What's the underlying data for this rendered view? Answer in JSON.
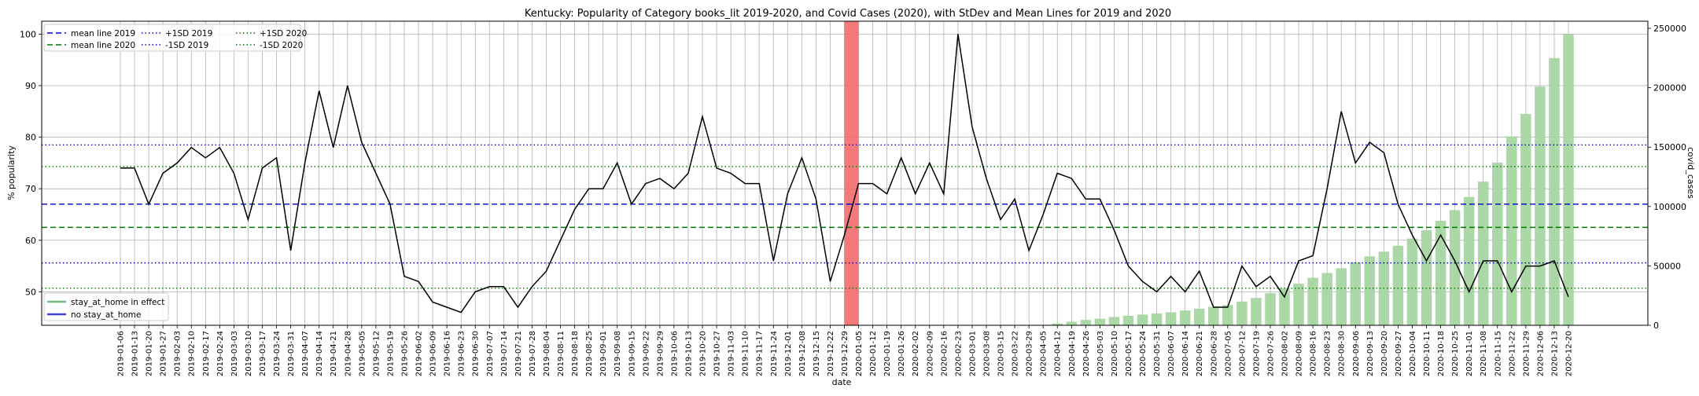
{
  "chart_data": {
    "type": "line",
    "title": "Kentucky: Popularity of Category books_lit 2019-2020, and Covid Cases (2020), with StDev and Mean Lines for 2019 and 2020",
    "xlabel": "date",
    "ylabel": "% popularity",
    "y2label": "covid_cases",
    "ylim": [
      43.5,
      102.5
    ],
    "y2lim": [
      0,
      256000
    ],
    "yticks": [
      50,
      60,
      70,
      80,
      90,
      100
    ],
    "y2ticks": [
      0,
      50000,
      100000,
      150000,
      200000,
      250000
    ],
    "grid": true,
    "categories": [
      "2019-01-06",
      "2019-01-13",
      "2019-01-20",
      "2019-01-27",
      "2019-02-03",
      "2019-02-10",
      "2019-02-17",
      "2019-02-24",
      "2019-03-03",
      "2019-03-10",
      "2019-03-17",
      "2019-03-24",
      "2019-03-31",
      "2019-04-07",
      "2019-04-14",
      "2019-04-21",
      "2019-04-28",
      "2019-05-05",
      "2019-05-12",
      "2019-05-19",
      "2019-05-26",
      "2019-06-02",
      "2019-06-09",
      "2019-06-16",
      "2019-06-23",
      "2019-06-30",
      "2019-07-07",
      "2019-07-14",
      "2019-07-21",
      "2019-07-28",
      "2019-08-04",
      "2019-08-11",
      "2019-08-18",
      "2019-08-25",
      "2019-09-01",
      "2019-09-08",
      "2019-09-15",
      "2019-09-22",
      "2019-09-29",
      "2019-10-06",
      "2019-10-13",
      "2019-10-20",
      "2019-10-27",
      "2019-11-03",
      "2019-11-10",
      "2019-11-17",
      "2019-11-24",
      "2019-12-01",
      "2019-12-08",
      "2019-12-15",
      "2019-12-22",
      "2019-12-29",
      "2020-01-05",
      "2020-01-12",
      "2020-01-19",
      "2020-01-26",
      "2020-02-02",
      "2020-02-09",
      "2020-02-16",
      "2020-02-23",
      "2020-03-01",
      "2020-03-08",
      "2020-03-15",
      "2020-03-22",
      "2020-03-29",
      "2020-04-05",
      "2020-04-12",
      "2020-04-19",
      "2020-04-26",
      "2020-05-03",
      "2020-05-10",
      "2020-05-17",
      "2020-05-24",
      "2020-05-31",
      "2020-06-07",
      "2020-06-14",
      "2020-06-21",
      "2020-06-28",
      "2020-07-05",
      "2020-07-12",
      "2020-07-19",
      "2020-07-26",
      "2020-08-02",
      "2020-08-09",
      "2020-08-16",
      "2020-08-23",
      "2020-08-30",
      "2020-09-06",
      "2020-09-13",
      "2020-09-20",
      "2020-09-27",
      "2020-10-04",
      "2020-10-11",
      "2020-10-18",
      "2020-10-25",
      "2020-11-01",
      "2020-11-08",
      "2020-11-15",
      "2020-11-22",
      "2020-11-29",
      "2020-12-06",
      "2020-12-13",
      "2020-12-20"
    ],
    "xtick_labels": [
      "2019-01-06",
      "2019-01-13",
      "2019-01-20",
      "2019-01-27",
      "2019-02-03",
      "2019-02-10",
      "2019-02-17",
      "2019-02-24",
      "2019-03-03",
      "2019-03-10",
      "2019-03-17",
      "2019-03-24",
      "2019-03-31",
      "2019-04-07",
      "2019-04-14",
      "2019-04-21",
      "2019-04-28",
      "2019-05-05",
      "2019-05-12",
      "2019-05-19",
      "2019-05-26",
      "2019-06-02",
      "2019-06-09",
      "2019-06-16",
      "2019-06-23",
      "2019-06-30",
      "2019-07-07",
      "2019-07-14",
      "2019-07-21",
      "2019-07-28",
      "2019-08-04",
      "2019-08-11",
      "2019-08-18",
      "2019-08-25",
      "2019-09-01",
      "2019-09-08",
      "2019-09-15",
      "2019-09-22",
      "2019-09-29",
      "2019-10-06",
      "2019-10-13",
      "2019-10-20",
      "2019-10-27",
      "2019-11-03",
      "2019-11-10",
      "2019-11-17",
      "2019-11-24",
      "2019-12-01",
      "2019-12-08",
      "2019-12-15",
      "2019-12-22",
      "2019-12-29",
      "2020-01-05",
      "2020-01-12",
      "2020-01-19",
      "2020-01-26",
      "2020-02-02",
      "2020-02-09",
      "2020-02-16",
      "2020-02-23",
      "2020-03-01",
      "2020-03-08",
      "2020-03-15",
      "2020-03-22",
      "2020-03-29",
      "2020-04-05",
      "2020-04-12",
      "2020-04-19",
      "2020-04-26",
      "2020-05-03",
      "2020-05-10",
      "2020-05-17",
      "2020-05-24",
      "2020-05-31",
      "2020-06-07",
      "2020-06-14",
      "2020-06-21",
      "2020-06-28",
      "2020-07-05",
      "2020-07-12",
      "2020-07-19",
      "2020-07-26",
      "2020-08-02",
      "2020-08-09",
      "2020-08-16",
      "2020-08-23",
      "2020-08-30",
      "2020-09-06",
      "2020-09-13",
      "2020-09-20",
      "2020-09-27",
      "2020-10-04",
      "2020-10-11",
      "2020-10-18",
      "2020-10-25",
      "2020-11-01",
      "2020-11-08",
      "2020-11-15",
      "2020-11-22",
      "2020-11-29",
      "2020-12-06",
      "2020-12-13",
      "2020-12-20"
    ],
    "popularity": [
      74,
      74,
      67,
      73,
      75,
      78,
      76,
      78,
      73,
      64,
      74,
      76,
      58,
      75,
      89,
      78,
      90,
      79,
      73,
      67,
      53,
      52,
      48,
      47,
      46,
      50,
      51,
      51,
      47,
      51,
      54,
      60,
      66,
      70,
      70,
      75,
      67,
      71,
      72,
      70,
      73,
      84,
      74,
      73,
      71,
      71,
      56,
      69,
      76,
      68,
      52,
      61,
      71,
      71,
      69,
      76,
      69,
      75,
      69,
      100,
      82,
      72,
      64,
      68,
      58,
      65,
      73,
      72,
      68,
      68,
      62,
      55,
      52,
      50,
      53,
      50,
      54,
      47,
      47,
      55,
      51,
      53,
      49,
      56,
      57,
      70,
      85,
      75,
      79,
      77,
      67,
      61,
      56,
      61,
      56,
      50,
      56,
      56,
      50,
      55,
      55,
      56,
      49
    ],
    "covid_cases": [
      0,
      0,
      0,
      0,
      0,
      0,
      0,
      0,
      0,
      0,
      0,
      0,
      0,
      0,
      0,
      0,
      0,
      0,
      0,
      0,
      0,
      0,
      0,
      0,
      0,
      0,
      0,
      0,
      0,
      0,
      0,
      0,
      0,
      0,
      0,
      0,
      0,
      0,
      0,
      0,
      0,
      0,
      0,
      0,
      0,
      0,
      0,
      0,
      0,
      0,
      0,
      0,
      0,
      0,
      0,
      0,
      0,
      0,
      0,
      0,
      0,
      0,
      0,
      0,
      0,
      0,
      1500,
      3000,
      4500,
      5500,
      7000,
      8000,
      9000,
      10000,
      11000,
      12500,
      14000,
      15500,
      17000,
      20000,
      23000,
      27000,
      31000,
      35000,
      40000,
      44000,
      48000,
      53000,
      58000,
      62000,
      67000,
      73000,
      80000,
      88000,
      97000,
      108000,
      121000,
      137000,
      159000,
      178000,
      201000,
      225000,
      245000
    ],
    "series": [
      {
        "name": "mean line 2019",
        "value": 67.0,
        "color": "#0000cc",
        "style": "dashed"
      },
      {
        "name": "mean line 2020",
        "value": 62.5,
        "color": "#007700",
        "style": "dashed"
      },
      {
        "name": "+1SD 2019",
        "value": 78.5,
        "color": "#0000cc",
        "style": "dotted"
      },
      {
        "name": "-1SD 2019",
        "value": 55.6,
        "color": "#0000cc",
        "style": "dotted"
      },
      {
        "name": "+1SD 2020",
        "value": 74.3,
        "color": "#007700",
        "style": "dotted"
      },
      {
        "name": "-1SD 2020",
        "value": 50.7,
        "color": "#007700",
        "style": "dotted"
      }
    ],
    "legend_top": [
      "mean line 2019",
      "mean line 2020",
      "+1SD 2019",
      "-1SD 2019",
      "+1SD 2020",
      "-1SD 2020"
    ],
    "legend_bottom": [
      {
        "name": "stay_at_home in effect",
        "color": "#77bb77"
      },
      {
        "name": "no stay_at_home",
        "color": "#4444dd"
      }
    ],
    "legend_top_placement": "upper-left",
    "legend_bottom_placement": "lower-left",
    "highlight_span": {
      "from": "2019-12-29",
      "to": "2020-01-05",
      "color": "#f26b6b"
    },
    "line_color": "#000000",
    "bar_color": "#a8d5a2"
  }
}
